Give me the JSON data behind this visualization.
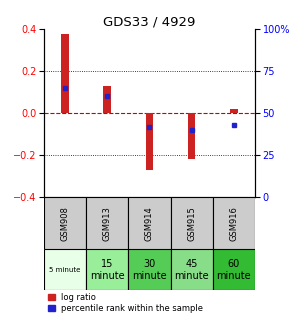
{
  "title": "GDS33 / 4929",
  "samples": [
    "GSM908",
    "GSM913",
    "GSM914",
    "GSM915",
    "GSM916"
  ],
  "log_ratios": [
    0.38,
    0.13,
    -0.27,
    -0.22,
    0.02
  ],
  "percentile_ranks": [
    65,
    60,
    42,
    40,
    43
  ],
  "percentile_scale": [
    0,
    25,
    50,
    75,
    100
  ],
  "ylim": [
    -0.4,
    0.4
  ],
  "yticks": [
    -0.4,
    -0.2,
    0,
    0.2,
    0.4
  ],
  "bar_color": "#cc2222",
  "dot_color": "#2222cc",
  "zero_line_color": "#cc0000",
  "time_labels": [
    "5 minute",
    "15\nminute",
    "30\nminute",
    "45\nminute",
    "60\nminute"
  ],
  "time_bg_colors": [
    "#e8ffe8",
    "#99ee99",
    "#55cc55",
    "#88dd88",
    "#33bb33"
  ],
  "sample_bg_color": "#cccccc",
  "bar_width": 0.18
}
